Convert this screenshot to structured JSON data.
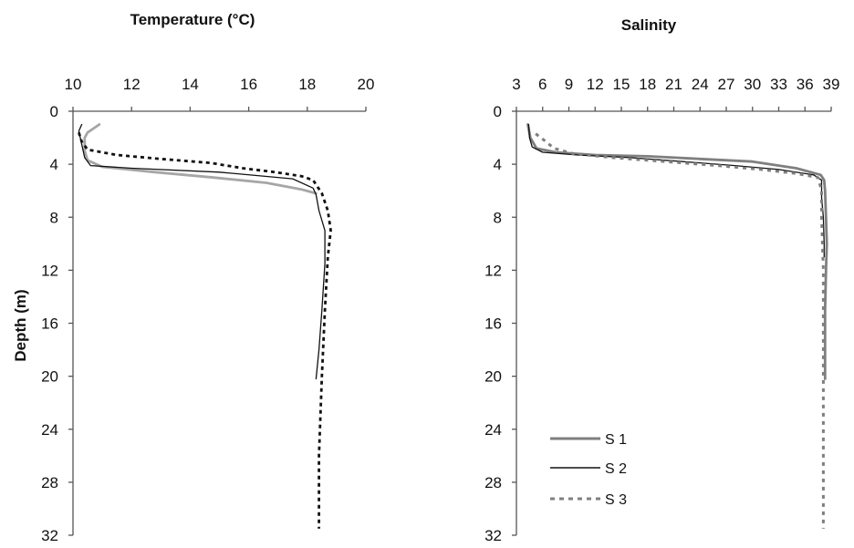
{
  "chart_data": [
    {
      "type": "line",
      "title": "Temperature (°C)",
      "xlabel": "",
      "ylabel": "Depth (m)",
      "x_axis_position": "top",
      "y_inverted": true,
      "xlim": [
        10,
        20
      ],
      "ylim": [
        0,
        32
      ],
      "xticks": [
        "10",
        "12",
        "14",
        "16",
        "18",
        "20"
      ],
      "yticks": [
        "0",
        "4",
        "8",
        "12",
        "16",
        "20",
        "24",
        "28",
        "32"
      ],
      "grid": false,
      "series": [
        {
          "style": "solid-gray",
          "color": "#a6a6a6",
          "points": [
            [
              10.9,
              1
            ],
            [
              10.5,
              1.6
            ],
            [
              10.4,
              2
            ],
            [
              10.4,
              3
            ],
            [
              10.5,
              3.7
            ],
            [
              11.0,
              4.2
            ],
            [
              12.8,
              4.6
            ],
            [
              14.8,
              5.0
            ],
            [
              16.6,
              5.4
            ],
            [
              17.8,
              5.9
            ],
            [
              18.3,
              6.2
            ]
          ]
        },
        {
          "style": "solid-black",
          "color": "#111111",
          "points": [
            [
              10.3,
              1
            ],
            [
              10.2,
              1.5
            ],
            [
              10.3,
              2.5
            ],
            [
              10.4,
              3.5
            ],
            [
              10.6,
              4.1
            ],
            [
              12.0,
              4.3
            ],
            [
              15.0,
              4.6
            ],
            [
              17.5,
              5.1
            ],
            [
              18.2,
              5.8
            ],
            [
              18.3,
              6.3
            ],
            [
              18.4,
              7.5
            ],
            [
              18.6,
              9.0
            ],
            [
              18.6,
              11.5
            ],
            [
              18.5,
              15
            ],
            [
              18.4,
              18
            ],
            [
              18.3,
              20.2
            ]
          ]
        },
        {
          "style": "dotted-black",
          "color": "#111111",
          "points": [
            [
              10.2,
              1.6
            ],
            [
              10.3,
              2.3
            ],
            [
              10.5,
              2.9
            ],
            [
              11.5,
              3.3
            ],
            [
              13.0,
              3.6
            ],
            [
              14.7,
              3.9
            ],
            [
              15.8,
              4.3
            ],
            [
              16.9,
              4.6
            ],
            [
              17.8,
              4.9
            ],
            [
              18.2,
              5.2
            ],
            [
              18.5,
              6.2
            ],
            [
              18.7,
              7.5
            ],
            [
              18.8,
              9.0
            ],
            [
              18.7,
              11.0
            ],
            [
              18.6,
              15
            ],
            [
              18.5,
              20
            ],
            [
              18.4,
              26
            ],
            [
              18.4,
              31.5
            ]
          ]
        }
      ]
    },
    {
      "type": "line",
      "title": "Salinity",
      "xlabel": "",
      "ylabel": "",
      "x_axis_position": "top",
      "y_inverted": true,
      "xlim": [
        3,
        39
      ],
      "ylim": [
        0,
        32
      ],
      "xticks": [
        "3",
        "6",
        "9",
        "12",
        "15",
        "18",
        "21",
        "24",
        "27",
        "30",
        "33",
        "36",
        "39"
      ],
      "yticks": [
        "0",
        "4",
        "8",
        "12",
        "16",
        "20",
        "24",
        "28",
        "32"
      ],
      "grid": false,
      "legend": {
        "position": "bottom-center",
        "entries": [
          "S 1",
          "S 2",
          "S 3"
        ]
      },
      "series": [
        {
          "name": "S 1",
          "style": "solid-gray",
          "color": "#7f7f7f",
          "points": [
            [
              4.3,
              1
            ],
            [
              4.6,
              2
            ],
            [
              5.3,
              2.8
            ],
            [
              7.5,
              3.1
            ],
            [
              12,
              3.3
            ],
            [
              18,
              3.4
            ],
            [
              24,
              3.6
            ],
            [
              30,
              3.8
            ],
            [
              35,
              4.3
            ],
            [
              37.8,
              4.8
            ],
            [
              38.2,
              5.2
            ],
            [
              38.3,
              6
            ],
            [
              38.4,
              8
            ],
            [
              38.5,
              10
            ],
            [
              38.4,
              12
            ],
            [
              38.3,
              15
            ],
            [
              38.3,
              20.2
            ]
          ]
        },
        {
          "name": "S 2",
          "style": "solid-black",
          "color": "#111111",
          "points": [
            [
              4.4,
              1
            ],
            [
              4.5,
              2
            ],
            [
              4.8,
              2.7
            ],
            [
              6,
              3.1
            ],
            [
              10,
              3.3
            ],
            [
              16,
              3.5
            ],
            [
              22,
              3.8
            ],
            [
              28,
              4.1
            ],
            [
              33,
              4.4
            ],
            [
              37,
              4.8
            ],
            [
              37.9,
              5.2
            ],
            [
              37.9,
              6.5
            ],
            [
              38.1,
              8
            ],
            [
              38.2,
              10
            ],
            [
              38.2,
              11
            ]
          ]
        },
        {
          "name": "S 3",
          "style": "dotted-gray",
          "color": "#7f7f7f",
          "points": [
            [
              5.2,
              1.7
            ],
            [
              6.2,
              2.2
            ],
            [
              7.3,
              2.8
            ],
            [
              9.5,
              3.2
            ],
            [
              14,
              3.5
            ],
            [
              20,
              3.8
            ],
            [
              26,
              4.1
            ],
            [
              31,
              4.4
            ],
            [
              35,
              4.7
            ],
            [
              37.5,
              5.0
            ],
            [
              37.9,
              6
            ],
            [
              37.9,
              8
            ],
            [
              38.0,
              10
            ],
            [
              38.1,
              12
            ],
            [
              38.1,
              16
            ],
            [
              38.1,
              20
            ],
            [
              38.1,
              26
            ],
            [
              38.1,
              31.5
            ]
          ]
        }
      ]
    }
  ]
}
